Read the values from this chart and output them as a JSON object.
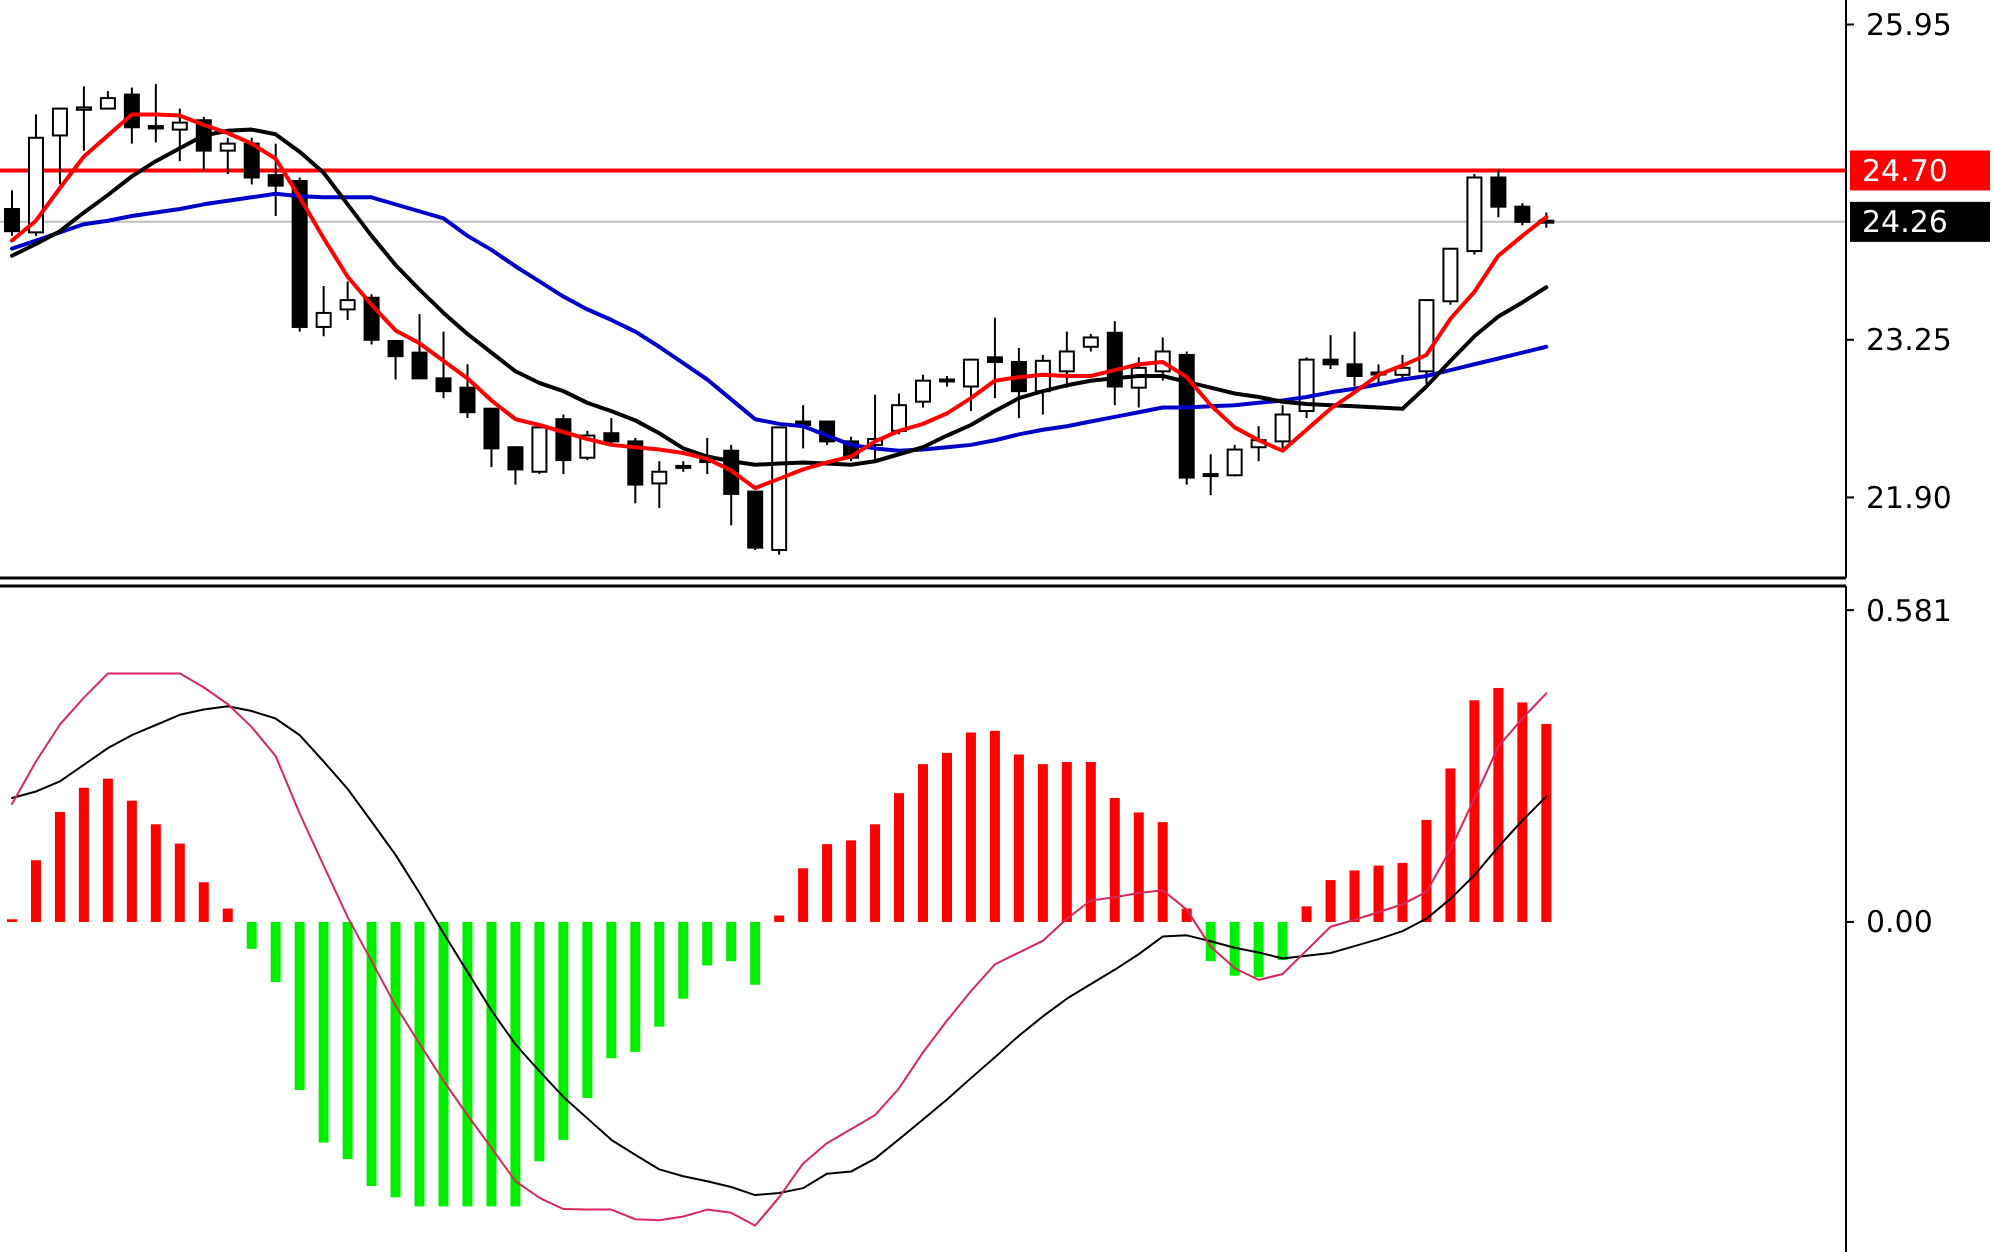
{
  "chart_data": [
    {
      "type": "candlestick",
      "categories": [
        null,
        null,
        null,
        null,
        null,
        null,
        null,
        null,
        null,
        null,
        null,
        null,
        null,
        null,
        null,
        null,
        null,
        null,
        null,
        null,
        null,
        null,
        null,
        null,
        null,
        null,
        null,
        null,
        null,
        null,
        null,
        null,
        null,
        null,
        null,
        null,
        null,
        null,
        null,
        null,
        null,
        null,
        null,
        null,
        null,
        null,
        null,
        null,
        null,
        null,
        null,
        null,
        null,
        null,
        null,
        null,
        null,
        null,
        null,
        null,
        null,
        null,
        null,
        null,
        null,
        null,
        null,
        null,
        null,
        null,
        null,
        null,
        null,
        null,
        null,
        null,
        null
      ],
      "ohlc": [
        [
          24.37,
          24.53,
          24.14,
          24.18
        ],
        [
          24.17,
          25.18,
          24.14,
          24.98
        ],
        [
          25.0,
          25.23,
          24.58,
          25.23
        ],
        [
          25.22,
          25.42,
          24.87,
          25.24
        ],
        [
          25.23,
          25.38,
          25.23,
          25.32
        ],
        [
          25.35,
          25.41,
          24.93,
          25.07
        ],
        [
          25.08,
          25.44,
          24.94,
          25.06
        ],
        [
          25.05,
          25.23,
          24.78,
          25.11
        ],
        [
          25.13,
          25.16,
          24.7,
          24.87
        ],
        [
          24.87,
          24.98,
          24.67,
          24.93
        ],
        [
          24.93,
          24.98,
          24.58,
          24.64
        ],
        [
          24.66,
          24.93,
          24.31,
          24.57
        ],
        [
          24.61,
          24.64,
          23.32,
          23.36
        ],
        [
          23.36,
          23.71,
          23.28,
          23.48
        ],
        [
          23.51,
          23.75,
          23.42,
          23.59
        ],
        [
          23.61,
          23.64,
          23.21,
          23.25
        ],
        [
          23.24,
          23.24,
          22.91,
          23.11
        ],
        [
          23.14,
          23.47,
          22.92,
          22.92
        ],
        [
          22.92,
          23.32,
          22.75,
          22.81
        ],
        [
          22.84,
          23.04,
          22.58,
          22.63
        ],
        [
          22.66,
          22.66,
          22.16,
          22.32
        ],
        [
          22.33,
          22.33,
          22.01,
          22.14
        ],
        [
          22.12,
          22.5,
          22.1,
          22.5
        ],
        [
          22.57,
          22.61,
          22.1,
          22.22
        ],
        [
          22.24,
          22.47,
          22.22,
          22.43
        ],
        [
          22.45,
          22.58,
          22.34,
          22.38
        ],
        [
          22.38,
          22.41,
          21.85,
          22.01
        ],
        [
          22.02,
          22.21,
          21.81,
          22.12
        ],
        [
          22.17,
          22.21,
          22.12,
          22.16
        ],
        [
          22.22,
          22.41,
          22.1,
          22.21
        ],
        [
          22.3,
          22.35,
          21.66,
          21.93
        ],
        [
          21.95,
          21.95,
          21.45,
          21.47
        ],
        [
          21.45,
          22.5,
          21.41,
          22.5
        ],
        [
          22.55,
          22.69,
          22.32,
          22.52
        ],
        [
          22.55,
          22.55,
          22.35,
          22.38
        ],
        [
          22.38,
          22.42,
          22.21,
          22.24
        ],
        [
          22.35,
          22.78,
          22.21,
          22.4
        ],
        [
          22.47,
          22.79,
          22.44,
          22.69
        ],
        [
          22.72,
          22.95,
          22.67,
          22.9
        ],
        [
          22.9,
          22.94,
          22.85,
          22.91
        ],
        [
          22.85,
          23.08,
          22.64,
          23.08
        ],
        [
          23.1,
          23.44,
          22.75,
          23.06
        ],
        [
          23.06,
          23.18,
          22.58,
          22.81
        ],
        [
          22.81,
          23.12,
          22.61,
          23.07
        ],
        [
          22.98,
          23.32,
          22.84,
          23.15
        ],
        [
          23.19,
          23.3,
          23.15,
          23.27
        ],
        [
          23.31,
          23.41,
          22.69,
          22.85
        ],
        [
          22.84,
          23.1,
          22.67,
          23.01
        ],
        [
          22.98,
          23.27,
          22.9,
          23.15
        ],
        [
          23.12,
          23.15,
          22.01,
          22.07
        ],
        [
          22.1,
          22.27,
          21.92,
          22.09
        ],
        [
          22.09,
          22.35,
          22.08,
          22.31
        ],
        [
          22.33,
          22.51,
          22.21,
          22.39
        ],
        [
          22.38,
          22.69,
          22.32,
          22.61
        ],
        [
          22.64,
          23.1,
          22.58,
          23.08
        ],
        [
          23.08,
          23.29,
          23.0,
          23.04
        ],
        [
          23.04,
          23.32,
          22.85,
          22.94
        ],
        [
          22.97,
          23.04,
          22.87,
          22.96
        ],
        [
          22.95,
          23.12,
          22.9,
          23.01
        ],
        [
          22.98,
          23.59,
          22.87,
          23.59
        ],
        [
          23.58,
          24.03,
          23.55,
          24.03
        ],
        [
          24.01,
          24.67,
          23.98,
          24.64
        ],
        [
          24.64,
          24.71,
          24.3,
          24.39
        ],
        [
          24.39,
          24.42,
          24.23,
          24.26
        ],
        [
          24.27,
          24.34,
          24.21,
          24.26
        ],
        null,
        null,
        null,
        null,
        null,
        null,
        null,
        null,
        null,
        null,
        null,
        null
      ],
      "series": [
        {
          "type": "line",
          "color": "#0000c8",
          "values": [
            24.03,
            24.1,
            24.17,
            24.24,
            24.27,
            24.31,
            24.34,
            24.37,
            24.41,
            24.44,
            24.47,
            24.5,
            24.48,
            24.47,
            24.47,
            24.47,
            24.41,
            24.35,
            24.29,
            24.14,
            24.02,
            23.88,
            23.75,
            23.62,
            23.51,
            23.42,
            23.32,
            23.19,
            23.05,
            22.91,
            22.74,
            22.57,
            22.53,
            22.51,
            22.43,
            22.35,
            22.32,
            22.3,
            22.31,
            22.33,
            22.35,
            22.39,
            22.44,
            22.48,
            22.51,
            22.55,
            22.59,
            22.63,
            22.67,
            22.67,
            22.68,
            22.69,
            22.71,
            22.73,
            22.76,
            22.8,
            22.83,
            22.87,
            22.91,
            22.94,
            22.99,
            23.04,
            23.09,
            23.14,
            23.19,
            null,
            null,
            null,
            null,
            null,
            null,
            null,
            null,
            null,
            null,
            null,
            null
          ]
        },
        {
          "type": "line",
          "color": "#000000",
          "values": [
            23.97,
            24.07,
            24.18,
            24.34,
            24.49,
            24.65,
            24.78,
            24.89,
            25.0,
            25.04,
            25.05,
            25.01,
            24.86,
            24.68,
            24.41,
            24.14,
            23.89,
            23.68,
            23.48,
            23.3,
            23.14,
            22.98,
            22.88,
            22.81,
            22.71,
            22.64,
            22.56,
            22.45,
            22.32,
            22.25,
            22.21,
            22.18,
            22.19,
            22.2,
            22.19,
            22.18,
            22.21,
            22.27,
            22.33,
            22.43,
            22.52,
            22.64,
            22.75,
            22.81,
            22.86,
            22.9,
            22.92,
            22.94,
            22.94,
            22.89,
            22.84,
            22.79,
            22.76,
            22.72,
            22.7,
            22.69,
            22.68,
            22.67,
            22.66,
            22.85,
            23.07,
            23.28,
            23.45,
            23.57,
            23.7,
            null,
            null,
            null,
            null,
            null,
            null,
            null,
            null,
            null,
            null,
            null,
            null
          ]
        },
        {
          "type": "line",
          "color": "#ff0000",
          "values": [
            24.1,
            24.27,
            24.55,
            24.82,
            25.0,
            25.18,
            25.18,
            25.17,
            25.09,
            25.02,
            24.93,
            24.8,
            24.47,
            24.12,
            23.79,
            23.55,
            23.33,
            23.22,
            23.07,
            22.92,
            22.73,
            22.57,
            22.52,
            22.46,
            22.4,
            22.35,
            22.33,
            22.31,
            22.28,
            22.23,
            22.13,
            21.98,
            22.06,
            22.14,
            22.2,
            22.25,
            22.38,
            22.47,
            22.53,
            22.62,
            22.75,
            22.9,
            22.93,
            22.95,
            22.94,
            22.94,
            22.99,
            23.04,
            23.06,
            22.93,
            22.69,
            22.5,
            22.39,
            22.3,
            22.48,
            22.66,
            22.8,
            22.95,
            23.03,
            23.12,
            23.43,
            23.66,
            23.97,
            24.14,
            24.3,
            null,
            null,
            null,
            null,
            null,
            null,
            null,
            null,
            null,
            null,
            null,
            null
          ]
        }
      ],
      "ref_lines": [
        {
          "axis": "y",
          "value": 24.7,
          "label": "24.70",
          "color": "#ff0000"
        },
        {
          "axis": "y",
          "value": 24.26,
          "label": "24.26",
          "color": "#000000"
        }
      ],
      "ylim": [
        21.21,
        26.16
      ],
      "yticks": [
        25.95,
        23.25,
        {
          "value": 21.9,
          "label": "21.90"
        }
      ],
      "tick_labels": "y"
    },
    {
      "type": "bar",
      "categories": [
        null,
        null,
        null,
        null,
        null,
        null,
        null,
        null,
        null,
        null,
        null,
        null,
        null,
        null,
        null,
        null,
        null,
        null,
        null,
        null,
        null,
        null,
        null,
        null,
        null,
        null,
        null,
        null,
        null,
        null,
        null,
        null,
        null,
        null,
        null,
        null,
        null,
        null,
        null,
        null,
        null,
        null,
        null,
        null,
        null,
        null,
        null,
        null,
        null,
        null,
        null,
        null,
        null,
        null,
        null,
        null,
        null,
        null,
        null,
        null,
        null,
        null,
        null,
        null,
        null,
        null,
        null,
        null,
        null,
        null,
        null,
        null,
        null,
        null,
        null,
        null,
        null
      ],
      "series": [
        {
          "type": "bar",
          "color": "#ff0000",
          "values": [
            0.005,
            0.115,
            0.205,
            0.25,
            0.267,
            0.226,
            0.182,
            0.146,
            0.074,
            0.025,
            null,
            null,
            null,
            null,
            null,
            null,
            null,
            null,
            null,
            null,
            null,
            null,
            null,
            null,
            null,
            null,
            null,
            null,
            null,
            null,
            null,
            null,
            0.012,
            0.1,
            0.145,
            0.152,
            0.182,
            0.24,
            0.294,
            0.315,
            0.353,
            0.356,
            0.312,
            0.294,
            0.298,
            0.298,
            0.231,
            0.204,
            0.186,
            0.025,
            null,
            null,
            null,
            null,
            0.029,
            0.078,
            0.096,
            0.105,
            0.11,
            0.19,
            0.286,
            0.413,
            0.436,
            0.409,
            0.369,
            null,
            null,
            null,
            null,
            null,
            null,
            null,
            null,
            null,
            null,
            null,
            null
          ]
        },
        {
          "type": "bar",
          "color": "#00ee00",
          "values": [
            null,
            null,
            null,
            null,
            null,
            null,
            null,
            null,
            null,
            null,
            -0.05,
            -0.112,
            -0.313,
            -0.411,
            -0.442,
            -0.492,
            -0.513,
            -0.53,
            -0.53,
            -0.53,
            -0.53,
            -0.53,
            -0.446,
            -0.406,
            -0.328,
            -0.254,
            -0.242,
            -0.195,
            -0.143,
            -0.081,
            -0.073,
            -0.117,
            null,
            null,
            null,
            null,
            null,
            null,
            null,
            null,
            null,
            null,
            null,
            null,
            null,
            null,
            null,
            null,
            null,
            null,
            -0.073,
            -0.1,
            -0.103,
            -0.071,
            null,
            null,
            null,
            null,
            null,
            null,
            null,
            null,
            null,
            null,
            null,
            null,
            null,
            null,
            null,
            null,
            null,
            null,
            null,
            null,
            null,
            null,
            null
          ]
        },
        {
          "type": "line",
          "color": "#000000",
          "values": [
            0.231,
            0.243,
            0.262,
            0.293,
            0.324,
            0.348,
            0.367,
            0.386,
            0.396,
            0.402,
            0.393,
            0.379,
            0.348,
            0.299,
            0.248,
            0.187,
            0.125,
            0.054,
            -0.021,
            -0.093,
            -0.165,
            -0.228,
            -0.278,
            -0.326,
            -0.366,
            -0.406,
            -0.434,
            -0.461,
            -0.474,
            -0.483,
            -0.494,
            -0.509,
            -0.505,
            -0.496,
            -0.469,
            -0.465,
            -0.441,
            -0.405,
            -0.368,
            -0.331,
            -0.291,
            -0.252,
            -0.212,
            -0.176,
            -0.143,
            -0.116,
            -0.089,
            -0.06,
            -0.027,
            -0.025,
            -0.036,
            -0.048,
            -0.057,
            -0.068,
            -0.063,
            -0.058,
            -0.045,
            -0.032,
            -0.017,
            0.006,
            0.043,
            0.087,
            0.14,
            0.189,
            0.234,
            null,
            null,
            null,
            null,
            null,
            null,
            null,
            null,
            null,
            null,
            null,
            null
          ]
        },
        {
          "type": "line",
          "color": "#d8285a",
          "values": [
            0.22,
            0.299,
            0.368,
            0.418,
            0.463,
            0.463,
            0.463,
            0.463,
            0.437,
            0.406,
            0.363,
            0.309,
            0.202,
            0.105,
            0.009,
            -0.073,
            -0.156,
            -0.227,
            -0.296,
            -0.36,
            -0.421,
            -0.483,
            -0.514,
            -0.535,
            -0.536,
            -0.536,
            -0.554,
            -0.556,
            -0.549,
            -0.536,
            -0.542,
            -0.566,
            -0.513,
            -0.45,
            -0.412,
            -0.386,
            -0.36,
            -0.31,
            -0.243,
            -0.184,
            -0.129,
            -0.079,
            -0.057,
            -0.035,
            0.006,
            0.04,
            0.046,
            0.054,
            0.059,
            0.023,
            -0.046,
            -0.086,
            -0.108,
            -0.097,
            -0.053,
            -0.009,
            0.004,
            0.018,
            0.033,
            0.056,
            0.135,
            0.23,
            0.327,
            0.379,
            0.426,
            null,
            null,
            null,
            null,
            null,
            null,
            null,
            null,
            null,
            null,
            null,
            null
          ]
        }
      ],
      "ylim": [
        -0.615,
        0.626
      ],
      "yticks": [
        0.581,
        {
          "value": 0,
          "label": "0.00"
        }
      ],
      "tick_labels": "y"
    }
  ]
}
